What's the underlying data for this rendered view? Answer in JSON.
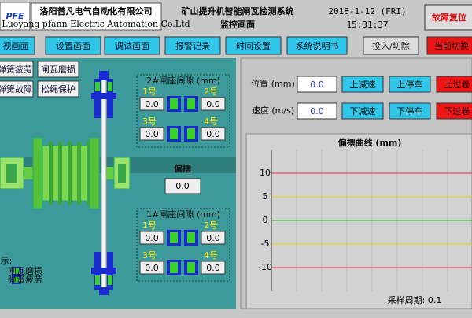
{
  "header": {
    "logo": "PFE",
    "company_cn": "洛阳普凡电气自动化有限公司",
    "company_en": "Luoyang pfann Electric Automation Co.Ltd",
    "title": "矿山提升机智能闸瓦检测系统",
    "subtitle": "监控画面",
    "date": "2018-1-12 (FRI)",
    "time": "15:31:37",
    "reset_button": "故障复位"
  },
  "nav": [
    "视画面",
    "设置画面",
    "调试画面",
    "报警记录",
    "时间设置",
    "系统说明书"
  ],
  "toggle_buttons": [
    "投入/切除",
    "当前切换"
  ],
  "alarms": [
    "弹簧疲劳",
    "闸瓦磨损",
    "弹簧故障",
    "松绳保护"
  ],
  "gap2": {
    "title": "2#闸座间隙 (mm)",
    "sensors": [
      {
        "label": "1号",
        "value": "0.0"
      },
      {
        "label": "2号",
        "value": "0.0"
      },
      {
        "label": "3号",
        "value": "0.0"
      },
      {
        "label": "4号",
        "value": "0.0"
      }
    ]
  },
  "deflection": {
    "label": "偏摆",
    "value": "0.0"
  },
  "gap1": {
    "title": "1#闸座间隙 (mm)",
    "sensors": [
      {
        "label": "1号",
        "value": "0.0"
      },
      {
        "label": "2号",
        "value": "0.0"
      },
      {
        "label": "3号",
        "value": "0.0"
      },
      {
        "label": "4号",
        "value": "0.0"
      }
    ]
  },
  "legend": {
    "title": "示:",
    "items": [
      "闸瓦磨损",
      "弹簧疲劳"
    ]
  },
  "position": {
    "label": "位置 (mm)",
    "value": "0.0",
    "buttons": [
      "上减速",
      "上停车",
      "上过卷"
    ]
  },
  "speed": {
    "label": "速度 (m/s)",
    "value": "0.0",
    "buttons": [
      "下减速",
      "下停车",
      "下过卷"
    ]
  },
  "chart": {
    "type": "line",
    "title": "偏摆曲线 (mm)",
    "ylim": [
      -15,
      15
    ],
    "yticks": [
      -10,
      -5,
      0,
      5,
      10
    ],
    "footer": "采样周期: 0.1"
  }
}
